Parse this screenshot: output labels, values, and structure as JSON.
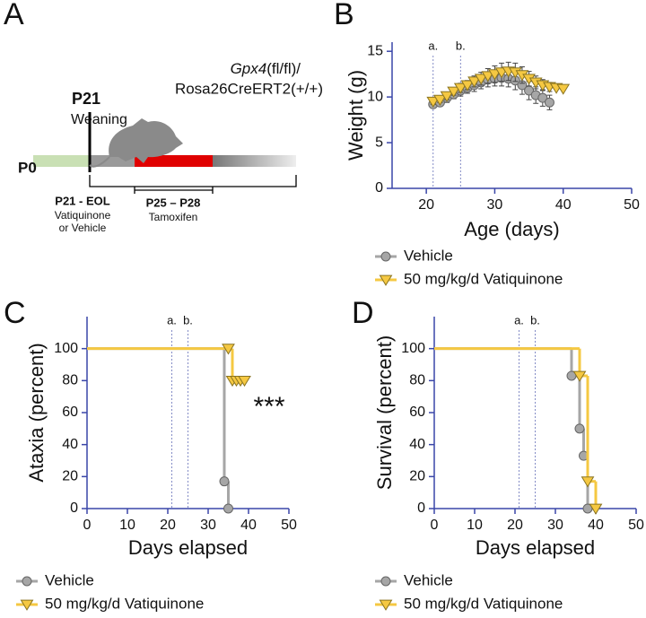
{
  "panel_labels": [
    "A",
    "B",
    "C",
    "D"
  ],
  "timeline": {
    "p0": "P0",
    "p21": "P21",
    "weaning": "Weaning",
    "genotype_gene": "Gpx4",
    "genotype_rest": "(fl/fl)/",
    "genotype_line2": "Rosa26CreERT2(+/+)",
    "treatment_range": "P21 - EOL",
    "treatment_line1": "Vatiquinone",
    "treatment_line2": "or Vehicle",
    "tamoxifen_range": "P25 – P28",
    "tamoxifen": "Tamoxifen"
  },
  "chart_data": [
    {
      "type": "scatter",
      "xlabel": "Age (days)",
      "ylabel": "Weight (g)",
      "xlim": [
        15,
        50
      ],
      "xticks": [
        20,
        30,
        40,
        50
      ],
      "ylim": [
        0,
        16
      ],
      "yticks": [
        0,
        5,
        10,
        15
      ],
      "vlines": [
        {
          "value": 21,
          "label": "a."
        },
        {
          "value": 25,
          "label": "b."
        }
      ],
      "series": [
        {
          "name": "Vehicle",
          "color": "#a6a6a6",
          "marker": "circle",
          "x": [
            21,
            22,
            23,
            24,
            25,
            26,
            27,
            28,
            29,
            30,
            31,
            32,
            33,
            34,
            35,
            36,
            37,
            38
          ],
          "values": [
            9.2,
            9.4,
            9.9,
            10.3,
            10.7,
            11.0,
            11.3,
            11.6,
            11.9,
            12.0,
            12.1,
            12.0,
            11.8,
            11.3,
            10.7,
            10.2,
            9.9,
            9.4
          ],
          "errors": [
            0.4,
            0.4,
            0.5,
            0.5,
            0.6,
            0.6,
            0.7,
            0.7,
            0.8,
            0.8,
            0.9,
            0.9,
            1.0,
            1.0,
            1.0,
            0.9,
            0.9,
            0.8
          ]
        },
        {
          "name": "50 mg/kg/d Vatiquinone",
          "color": "#f5c842",
          "marker": "triangle",
          "x": [
            21,
            22,
            23,
            24,
            25,
            26,
            27,
            28,
            29,
            30,
            31,
            32,
            33,
            34,
            35,
            36,
            37,
            38,
            39,
            40
          ],
          "values": [
            9.5,
            9.7,
            10.1,
            10.6,
            11.0,
            11.3,
            11.7,
            12.0,
            12.3,
            12.5,
            12.7,
            12.8,
            12.7,
            12.4,
            12.0,
            11.6,
            11.3,
            11.1,
            11.0,
            10.9
          ],
          "errors": [
            0.3,
            0.3,
            0.4,
            0.4,
            0.5,
            0.5,
            0.6,
            0.7,
            0.8,
            0.9,
            1.0,
            1.0,
            1.0,
            0.9,
            0.8,
            0.7,
            0.6,
            0.5,
            0,
            0
          ]
        }
      ]
    },
    {
      "type": "step",
      "xlabel": "Days elapsed",
      "ylabel": "Ataxia (percent)",
      "xlim": [
        0,
        50
      ],
      "xticks": [
        0,
        10,
        20,
        30,
        40,
        50
      ],
      "ylim": [
        0,
        120
      ],
      "yticks": [
        0,
        20,
        40,
        60,
        80,
        100
      ],
      "vlines": [
        {
          "value": 21,
          "label": "a."
        },
        {
          "value": 25,
          "label": "b."
        }
      ],
      "annotation": "***",
      "series": [
        {
          "name": "Vehicle",
          "color": "#a6a6a6",
          "marker": "circle",
          "x": [
            0,
            34,
            35
          ],
          "values": [
            100,
            17,
            0
          ]
        },
        {
          "name": "50 mg/kg/d Vatiquinone",
          "color": "#f5c842",
          "marker": "triangle",
          "x": [
            0,
            35,
            36,
            37,
            38,
            39
          ],
          "values": [
            100,
            100,
            80,
            80,
            80,
            80
          ]
        }
      ]
    },
    {
      "type": "step",
      "xlabel": "Days elapsed",
      "ylabel": "Survival (percent)",
      "xlim": [
        0,
        50
      ],
      "xticks": [
        0,
        10,
        20,
        30,
        40,
        50
      ],
      "ylim": [
        0,
        120
      ],
      "yticks": [
        0,
        20,
        40,
        60,
        80,
        100
      ],
      "vlines": [
        {
          "value": 21,
          "label": "a."
        },
        {
          "value": 25,
          "label": "b."
        }
      ],
      "series": [
        {
          "name": "Vehicle",
          "color": "#a6a6a6",
          "marker": "circle",
          "x": [
            0,
            34,
            36,
            37,
            38
          ],
          "values": [
            100,
            83,
            50,
            33,
            0
          ]
        },
        {
          "name": "50 mg/kg/d Vatiquinone",
          "color": "#f5c842",
          "marker": "triangle",
          "x": [
            0,
            36,
            38,
            40
          ],
          "values": [
            100,
            83,
            17,
            0
          ]
        }
      ]
    }
  ]
}
